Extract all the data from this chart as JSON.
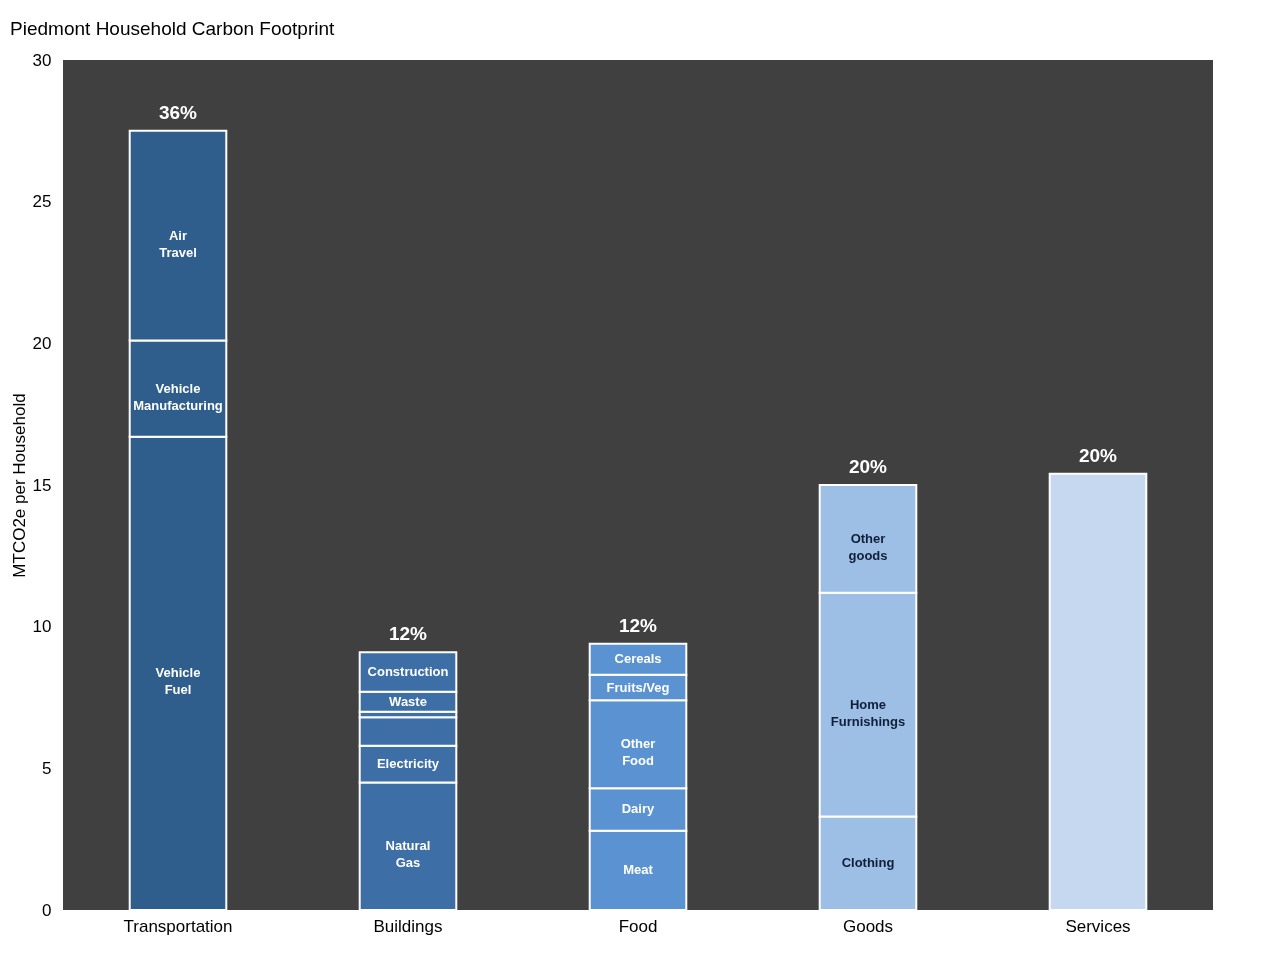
{
  "chart_data": {
    "type": "bar",
    "title": "Piedmont Household Carbon Footprint",
    "ylabel": "MTCO2e per Household",
    "categories": [
      "Transportation",
      "Buildings",
      "Food",
      "Goods",
      "Services"
    ],
    "stacked": true,
    "series": [
      {
        "name": "Vehicle Fuel",
        "color": "#2f5d8c",
        "values": [
          16.7,
          null,
          null,
          null,
          null
        ]
      },
      {
        "name": "Vehicle Manufacturing",
        "color": "#2f5d8c",
        "values": [
          3.4,
          null,
          null,
          null,
          null
        ]
      },
      {
        "name": "Air Travel",
        "color": "#2f5d8c",
        "values": [
          7.4,
          null,
          null,
          null,
          null
        ]
      },
      {
        "name": "Natural Gas",
        "color": "#3d6ea5",
        "values": [
          null,
          4.5,
          null,
          null,
          null
        ]
      },
      {
        "name": "Electricity",
        "color": "#3d6ea5",
        "values": [
          null,
          1.3,
          null,
          null,
          null
        ]
      },
      {
        "color": "#3d6ea5",
        "values": [
          null,
          1.0,
          null,
          null,
          null
        ]
      },
      {
        "color": "#3d6ea5",
        "values": [
          null,
          0.2,
          null,
          null,
          null
        ]
      },
      {
        "name": "Waste",
        "color": "#3d6ea5",
        "values": [
          null,
          0.7,
          null,
          null,
          null
        ]
      },
      {
        "name": "Construction",
        "color": "#3d6ea5",
        "values": [
          null,
          1.4,
          null,
          null,
          null
        ]
      },
      {
        "name": "Meat",
        "color": "#5b93d2",
        "values": [
          null,
          null,
          2.8,
          null,
          null
        ]
      },
      {
        "name": "Dairy",
        "color": "#5b93d2",
        "values": [
          null,
          null,
          1.5,
          null,
          null
        ]
      },
      {
        "name": "Other Food",
        "color": "#5b93d2",
        "values": [
          null,
          null,
          3.1,
          null,
          null
        ]
      },
      {
        "name": "Fruits/Veg",
        "color": "#5b93d2",
        "values": [
          null,
          null,
          0.9,
          null,
          null
        ]
      },
      {
        "name": "Cereals",
        "color": "#5b93d2",
        "values": [
          null,
          null,
          1.1,
          null,
          null
        ]
      },
      {
        "name": "Clothing",
        "color": "#9dbee5",
        "values": [
          null,
          null,
          null,
          3.3,
          null
        ]
      },
      {
        "name": "Home Furnishings",
        "color": "#9dbee5",
        "values": [
          null,
          null,
          null,
          7.9,
          null
        ]
      },
      {
        "name": "Other goods",
        "color": "#9dbee5",
        "values": [
          null,
          null,
          null,
          3.8,
          null
        ]
      },
      {
        "color": "#c6d8ef",
        "values": [
          null,
          null,
          null,
          null,
          15.4
        ]
      }
    ],
    "totals": [
      "36%",
      "12%",
      "12%",
      "20%",
      "20%"
    ],
    "ylim": [
      0,
      30
    ],
    "yticks": [
      0,
      5,
      10,
      15,
      20,
      25,
      30
    ],
    "grid": false
  }
}
